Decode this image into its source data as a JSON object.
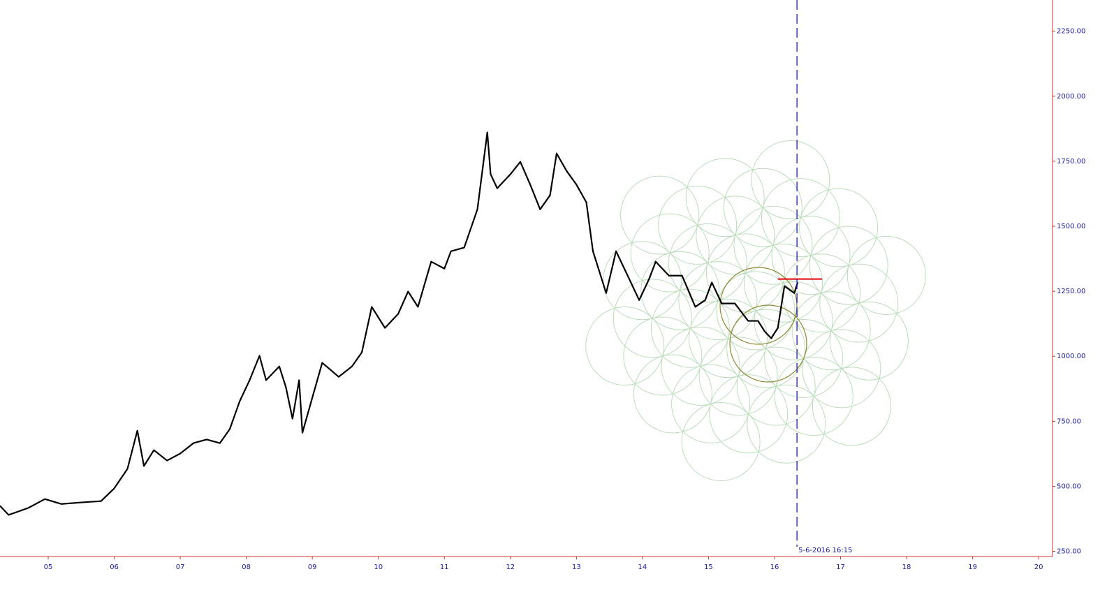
{
  "chart_data": {
    "type": "line",
    "x": [
      2004.27,
      2004.4,
      2004.7,
      2004.95,
      2005.2,
      2005.5,
      2005.8,
      2006.0,
      2006.2,
      2006.35,
      2006.45,
      2006.6,
      2006.8,
      2007.0,
      2007.2,
      2007.4,
      2007.6,
      2007.75,
      2007.9,
      2008.05,
      2008.2,
      2008.3,
      2008.5,
      2008.6,
      2008.7,
      2008.8,
      2008.85,
      2009.0,
      2009.15,
      2009.4,
      2009.6,
      2009.75,
      2009.9,
      2010.1,
      2010.3,
      2010.45,
      2010.6,
      2010.8,
      2011.0,
      2011.1,
      2011.3,
      2011.5,
      2011.65,
      2011.7,
      2011.8,
      2012.0,
      2012.15,
      2012.3,
      2012.45,
      2012.6,
      2012.7,
      2012.85,
      2013.0,
      2013.15,
      2013.25,
      2013.45,
      2013.6,
      2013.8,
      2013.95,
      2014.1,
      2014.2,
      2014.4,
      2014.6,
      2014.8,
      2014.95,
      2015.05,
      2015.2,
      2015.4,
      2015.6,
      2015.75,
      2015.85,
      2015.95,
      2016.05,
      2016.15,
      2016.3,
      2016.35
    ],
    "series": [
      {
        "color": "#000000",
        "values": [
          425,
          390,
          417,
          451,
          432,
          438,
          443,
          492,
          567,
          714,
          578,
          639,
          599,
          626,
          666,
          680,
          666,
          720,
          827,
          908,
          1002,
          908,
          961,
          881,
          760,
          908,
          706,
          841,
          975,
          921,
          961,
          1015,
          1190,
          1109,
          1163,
          1249,
          1190,
          1364,
          1337,
          1404,
          1418,
          1565,
          1861,
          1700,
          1646,
          1700,
          1748,
          1660,
          1565,
          1619,
          1780,
          1713,
          1660,
          1592,
          1404,
          1243,
          1404,
          1297,
          1216,
          1297,
          1364,
          1310,
          1310,
          1190,
          1216,
          1284,
          1203,
          1203,
          1136,
          1136,
          1096,
          1069,
          1109,
          1270,
          1243,
          1284
        ]
      }
    ],
    "xlim": [
      2004.27,
      2020.21
    ],
    "xticks": [
      {
        "value": 2005,
        "label": "05"
      },
      {
        "value": 2006,
        "label": "06"
      },
      {
        "value": 2007,
        "label": "07"
      },
      {
        "value": 2008,
        "label": "08"
      },
      {
        "value": 2009,
        "label": "09"
      },
      {
        "value": 2010,
        "label": "10"
      },
      {
        "value": 2011,
        "label": "11"
      },
      {
        "value": 2012,
        "label": "12"
      },
      {
        "value": 2013,
        "label": "13"
      },
      {
        "value": 2014,
        "label": "14"
      },
      {
        "value": 2015,
        "label": "15"
      },
      {
        "value": 2016,
        "label": "16"
      },
      {
        "value": 2017,
        "label": "17"
      },
      {
        "value": 2018,
        "label": "18"
      },
      {
        "value": 2019,
        "label": "19"
      },
      {
        "value": 2020,
        "label": "20"
      }
    ],
    "ylim": [
      230,
      2370
    ],
    "yticks": [
      {
        "value": 250,
        "label": "250.00"
      },
      {
        "value": 500,
        "label": "500.00"
      },
      {
        "value": 750,
        "label": "750.00"
      },
      {
        "value": 1000,
        "label": "1000.00"
      },
      {
        "value": 1250,
        "label": "1250.00"
      },
      {
        "value": 1500,
        "label": "1500.00"
      },
      {
        "value": 1750,
        "label": "1750.00"
      },
      {
        "value": 2000,
        "label": "2000.00"
      },
      {
        "value": 2250,
        "label": "2250.00"
      }
    ],
    "cursor": {
      "x": 2016.34,
      "label": "5-6-2016 16:15",
      "color": "#1a1aa0"
    },
    "level": {
      "value": 1297,
      "x": [
        2016.05,
        2016.72
      ],
      "color": "#e00000"
    }
  }
}
